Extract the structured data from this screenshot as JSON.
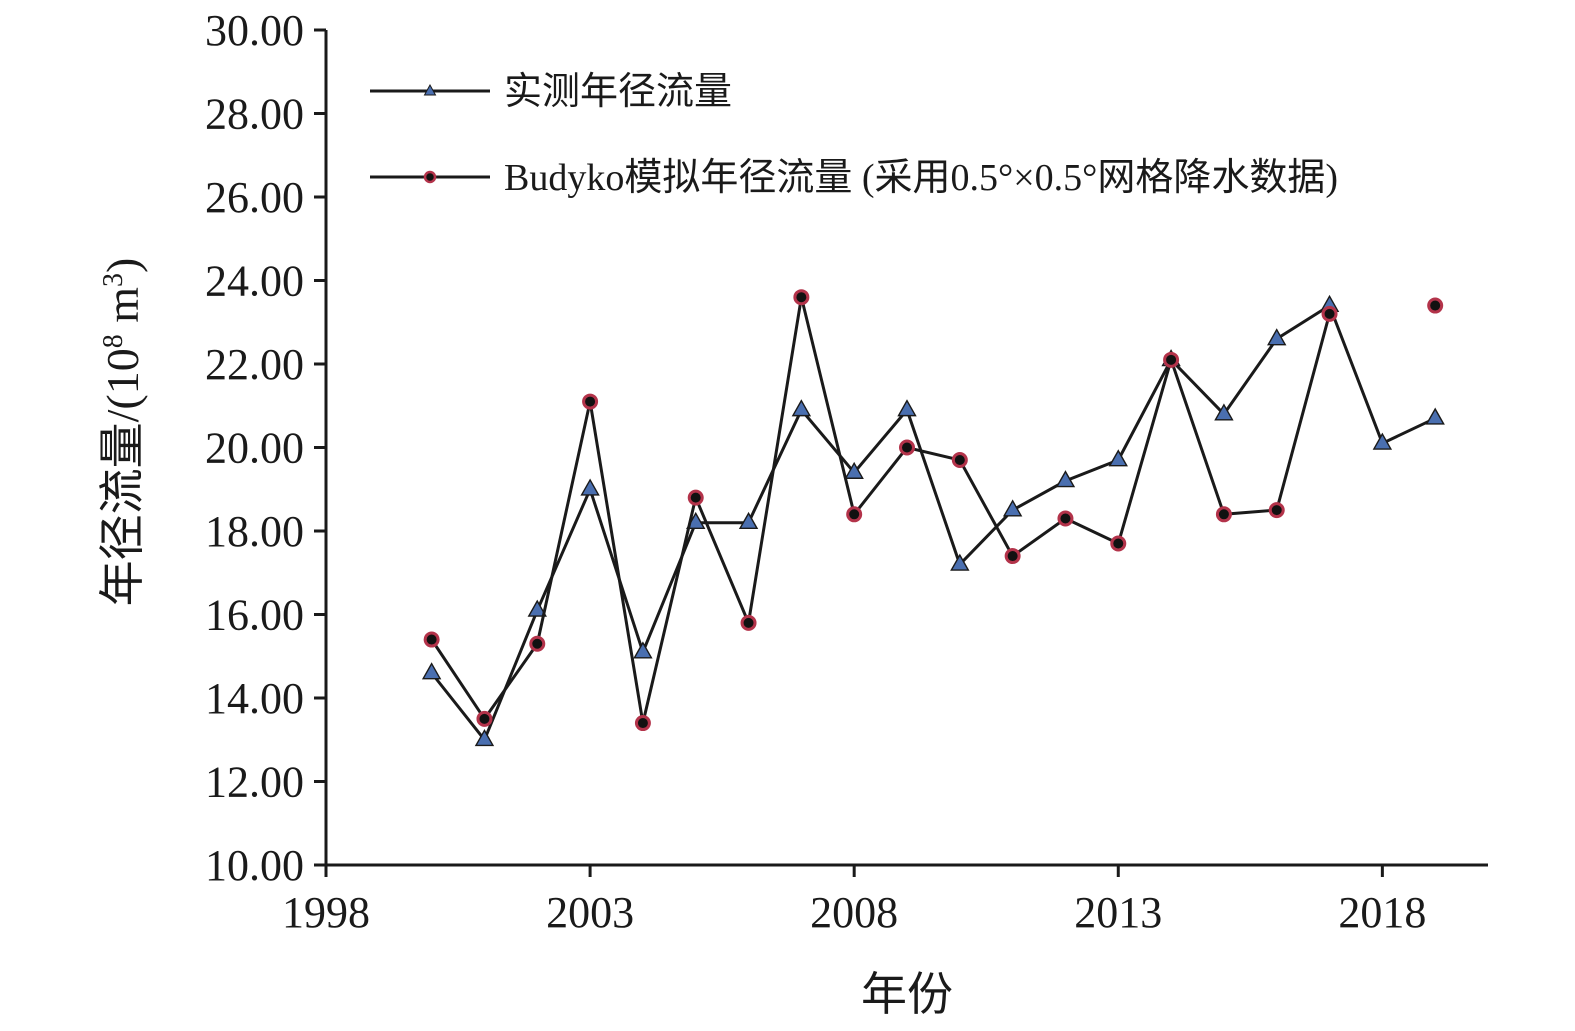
{
  "chart_data": {
    "type": "line",
    "title": "",
    "xlabel": "年份",
    "ylabel_main": "年径流量/(10",
    "ylabel_sup1": "8",
    "ylabel_mid": " m",
    "ylabel_sup2": "3",
    "ylabel_end": ")",
    "xlim": [
      1998,
      2020
    ],
    "ylim": [
      10,
      30
    ],
    "xticks": [
      1998,
      2003,
      2008,
      2013,
      2018
    ],
    "yticks": [
      10,
      12,
      14,
      16,
      18,
      20,
      22,
      24,
      26,
      28,
      30
    ],
    "ytick_labels": [
      "10.00",
      "12.00",
      "14.00",
      "16.00",
      "18.00",
      "20.00",
      "22.00",
      "24.00",
      "26.00",
      "28.00",
      "30.00"
    ],
    "legend_position": "top-left",
    "grid": false,
    "series": [
      {
        "name": "实测年径流量",
        "marker": "triangle",
        "marker_fill": "#4a6fb0",
        "line_color": "#1a1a1a",
        "x": [
          2000,
          2001,
          2002,
          2003,
          2004,
          2005,
          2006,
          2007,
          2008,
          2009,
          2010,
          2011,
          2012,
          2013,
          2014,
          2015,
          2016,
          2017,
          2018,
          2019
        ],
        "values": [
          14.6,
          13.0,
          16.1,
          19.0,
          15.1,
          18.2,
          18.2,
          20.9,
          19.4,
          20.9,
          17.2,
          18.5,
          19.2,
          19.7,
          22.1,
          20.8,
          22.6,
          23.4,
          20.1,
          20.7
        ]
      },
      {
        "name": "Budyko模拟年径流量 (采用0.5°×0.5°网格降水数据)",
        "marker": "circle",
        "marker_fill": "#111111",
        "marker_edge": "#b3334a",
        "line_color": "#1a1a1a",
        "x": [
          2000,
          2001,
          2002,
          2003,
          2004,
          2005,
          2006,
          2007,
          2008,
          2009,
          2010,
          2011,
          2012,
          2013,
          2014,
          2015,
          2016,
          2017,
          2019
        ],
        "values": [
          15.4,
          13.5,
          15.3,
          21.1,
          13.4,
          18.8,
          15.8,
          23.6,
          18.4,
          20.0,
          19.7,
          17.4,
          18.3,
          17.7,
          22.1,
          18.4,
          18.5,
          23.2,
          23.4
        ],
        "line_breaks_after_index": 17
      }
    ]
  }
}
